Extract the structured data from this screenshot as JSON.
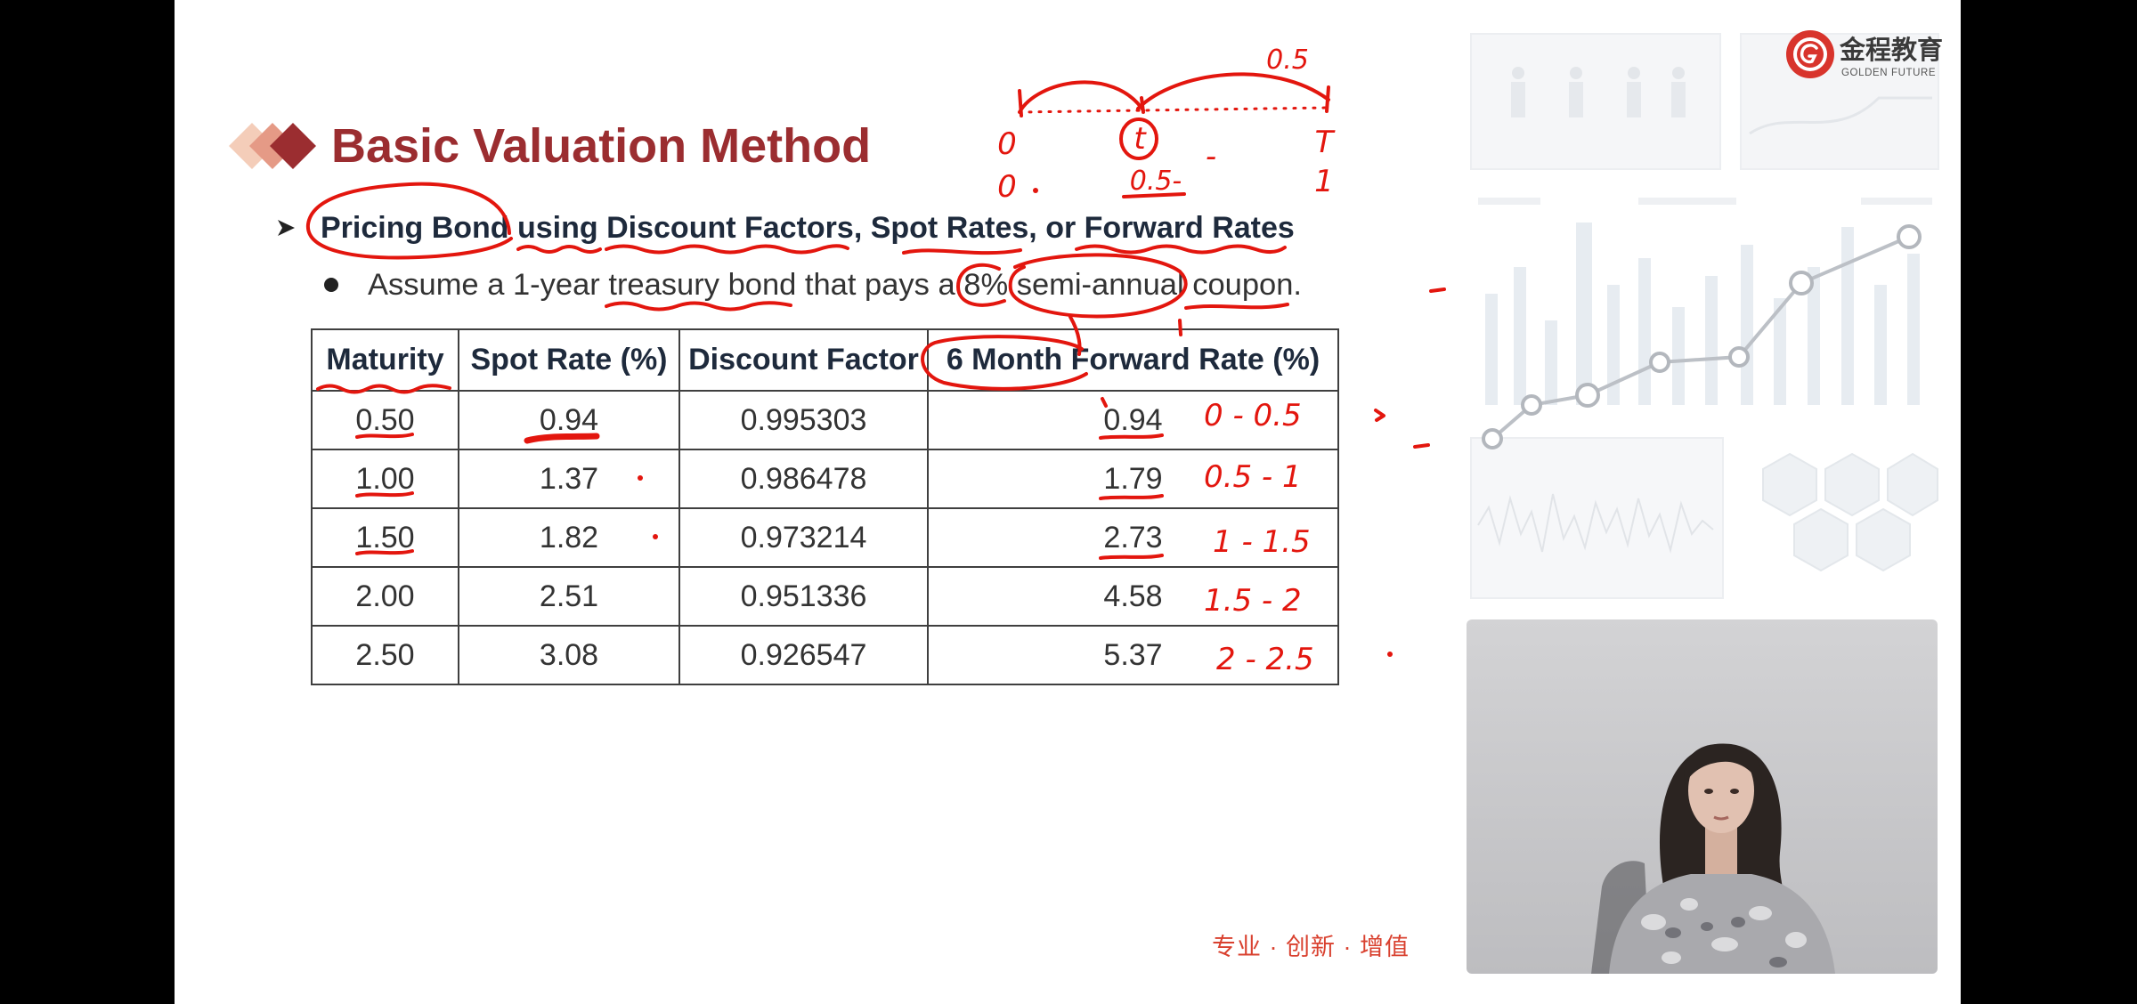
{
  "slide": {
    "title": "Basic Valuation Method",
    "bullets": {
      "main": "Pricing Bond using Discount Factors, Spot Rates, or Forward Rates",
      "sub": "Assume a 1-year treasury bond that pays a 8% semi-annual coupon."
    },
    "table": {
      "headers": [
        "Maturity",
        "Spot Rate (%)",
        "Discount Factor",
        "6 Month Forward Rate (%)"
      ],
      "rows": [
        [
          "0.50",
          "0.94",
          "0.995303",
          "0.94"
        ],
        [
          "1.00",
          "1.37",
          "0.986478",
          "1.79"
        ],
        [
          "1.50",
          "1.82",
          "0.973214",
          "2.73"
        ],
        [
          "2.00",
          "2.51",
          "0.951336",
          "4.58"
        ],
        [
          "2.50",
          "3.08",
          "0.926547",
          "5.37"
        ]
      ]
    },
    "footer_slogan": "专业 · 创新 · 增值"
  },
  "logo": {
    "name_cn": "金程教育",
    "name_en": "GOLDEN FUTURE"
  },
  "handwriting": {
    "timeline_top": "0.5",
    "timeline_row1": [
      "0",
      "t",
      "-",
      "T"
    ],
    "timeline_row2": [
      "0",
      "0.5-",
      "1"
    ],
    "forward_periods": [
      "0 - 0.5",
      "0.5 - 1",
      "1 - 1.5",
      "1.5 - 2",
      "2 - 2.5"
    ]
  },
  "icons": {
    "title_mark": "diamond-stack-icon",
    "main_bullet": "arrow-bullet-icon",
    "sub_bullet": "dot-bullet-icon",
    "logo": "golden-future-seal-icon"
  },
  "colors": {
    "frame_background": "#000000",
    "slide_background": "#ffffff",
    "title": "#9b2d30",
    "heading_text": "#1e2a3c",
    "body_text": "#333333",
    "table_border": "#3f3f3f",
    "ink": "#e3160e",
    "slogan": "#d9412f",
    "logo_red": "#d8342c",
    "logo_text": "#3a3a3a",
    "title_mark_light": "#f4cdb9",
    "title_mark_mid": "#e59a86"
  }
}
